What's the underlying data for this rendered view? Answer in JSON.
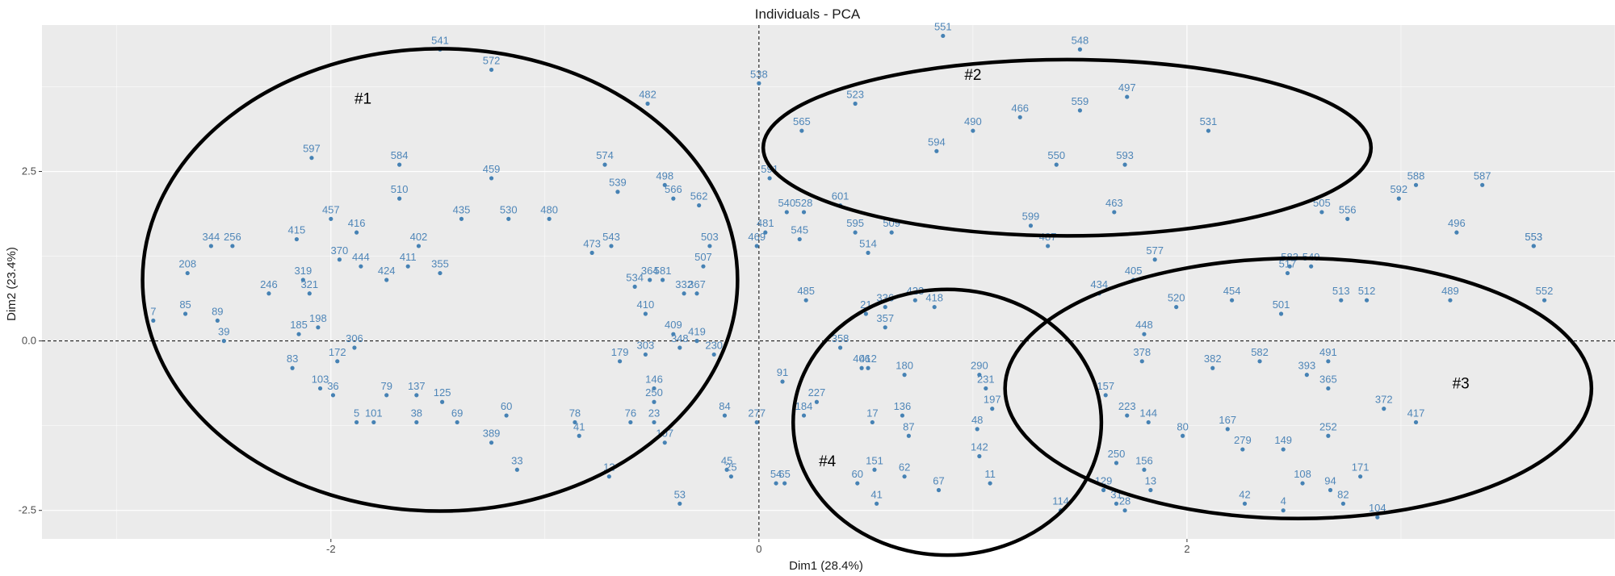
{
  "chart_data": {
    "type": "scatter",
    "title": "Individuals - PCA",
    "xlabel": "Dim1 (28.4%)",
    "ylabel": "Dim2 (23.4%)",
    "xlim": [
      -3.35,
      4.0
    ],
    "ylim": [
      -2.92,
      4.66
    ],
    "x_ticks": [
      -2,
      0,
      2
    ],
    "x_tick_labels": [
      "-2",
      "0",
      "2"
    ],
    "y_ticks": [
      -2.5,
      0.0,
      2.5
    ],
    "y_tick_labels": [
      "-2.5",
      "0.0",
      "2.5"
    ],
    "grid": true,
    "reference_lines": {
      "x": 0,
      "y": 0,
      "style": "dashed"
    },
    "point_color": "#4682b4",
    "points": [
      {
        "label": "541",
        "x": -1.49,
        "y": 4.3
      },
      {
        "label": "572",
        "x": -1.25,
        "y": 4.0
      },
      {
        "label": "538",
        "x": 0.0,
        "y": 3.8
      },
      {
        "label": "551",
        "x": 0.86,
        "y": 4.5
      },
      {
        "label": "548",
        "x": 1.5,
        "y": 4.3
      },
      {
        "label": "523",
        "x": 0.45,
        "y": 3.5
      },
      {
        "label": "497",
        "x": 1.72,
        "y": 3.6
      },
      {
        "label": "466",
        "x": 1.22,
        "y": 3.3
      },
      {
        "label": "559",
        "x": 1.5,
        "y": 3.4
      },
      {
        "label": "490",
        "x": 1.0,
        "y": 3.1
      },
      {
        "label": "565",
        "x": 0.2,
        "y": 3.1
      },
      {
        "label": "482",
        "x": -0.52,
        "y": 3.5
      },
      {
        "label": "531",
        "x": 2.1,
        "y": 3.1
      },
      {
        "label": "597",
        "x": -2.09,
        "y": 2.7
      },
      {
        "label": "584",
        "x": -1.68,
        "y": 2.6
      },
      {
        "label": "459",
        "x": -1.25,
        "y": 2.4
      },
      {
        "label": "574",
        "x": -0.72,
        "y": 2.6
      },
      {
        "label": "498",
        "x": -0.44,
        "y": 2.3
      },
      {
        "label": "539",
        "x": -0.66,
        "y": 2.2
      },
      {
        "label": "566",
        "x": -0.4,
        "y": 2.1
      },
      {
        "label": "562",
        "x": -0.28,
        "y": 2.0
      },
      {
        "label": "510",
        "x": -1.68,
        "y": 2.1
      },
      {
        "label": "594",
        "x": 0.83,
        "y": 2.8
      },
      {
        "label": "591",
        "x": 0.05,
        "y": 2.4
      },
      {
        "label": "593",
        "x": 1.71,
        "y": 2.6
      },
      {
        "label": "550",
        "x": 1.39,
        "y": 2.6
      },
      {
        "label": "588",
        "x": 3.07,
        "y": 2.3
      },
      {
        "label": "587",
        "x": 3.38,
        "y": 2.3
      },
      {
        "label": "592",
        "x": 2.99,
        "y": 2.1
      },
      {
        "label": "463",
        "x": 1.66,
        "y": 1.9
      },
      {
        "label": "505",
        "x": 2.63,
        "y": 1.9
      },
      {
        "label": "556",
        "x": 2.75,
        "y": 1.8
      },
      {
        "label": "496",
        "x": 3.26,
        "y": 1.6
      },
      {
        "label": "553",
        "x": 3.62,
        "y": 1.4
      },
      {
        "label": "457",
        "x": -2.0,
        "y": 1.8
      },
      {
        "label": "416",
        "x": -1.88,
        "y": 1.6
      },
      {
        "label": "415",
        "x": -2.16,
        "y": 1.5
      },
      {
        "label": "344",
        "x": -2.56,
        "y": 1.4
      },
      {
        "label": "256",
        "x": -2.46,
        "y": 1.4
      },
      {
        "label": "208",
        "x": -2.67,
        "y": 1.0
      },
      {
        "label": "7",
        "x": -2.83,
        "y": 0.3
      },
      {
        "label": "85",
        "x": -2.68,
        "y": 0.4
      },
      {
        "label": "89",
        "x": -2.53,
        "y": 0.3
      },
      {
        "label": "39",
        "x": -2.5,
        "y": 0.0
      },
      {
        "label": "246",
        "x": -2.29,
        "y": 0.7
      },
      {
        "label": "402",
        "x": -1.59,
        "y": 1.4
      },
      {
        "label": "435",
        "x": -1.39,
        "y": 1.8
      },
      {
        "label": "530",
        "x": -1.17,
        "y": 1.8
      },
      {
        "label": "480",
        "x": -0.98,
        "y": 1.8
      },
      {
        "label": "503",
        "x": -0.23,
        "y": 1.4
      },
      {
        "label": "507",
        "x": -0.26,
        "y": 1.1
      },
      {
        "label": "543",
        "x": -0.69,
        "y": 1.4
      },
      {
        "label": "473",
        "x": -0.78,
        "y": 1.3
      },
      {
        "label": "553b",
        "x": 3.62,
        "y": 1.4
      },
      {
        "label": "601",
        "x": 0.38,
        "y": 2.0
      },
      {
        "label": "540",
        "x": 0.13,
        "y": 1.9
      },
      {
        "label": "528",
        "x": 0.21,
        "y": 1.9
      },
      {
        "label": "595",
        "x": 0.45,
        "y": 1.6
      },
      {
        "label": "545",
        "x": 0.19,
        "y": 1.5
      },
      {
        "label": "509",
        "x": 0.62,
        "y": 1.6
      },
      {
        "label": "481",
        "x": 0.03,
        "y": 1.6
      },
      {
        "label": "469",
        "x": -0.01,
        "y": 1.4
      },
      {
        "label": "514",
        "x": 0.51,
        "y": 1.3
      },
      {
        "label": "599",
        "x": 1.27,
        "y": 1.7
      },
      {
        "label": "487",
        "x": 1.35,
        "y": 1.4
      },
      {
        "label": "577",
        "x": 1.85,
        "y": 1.2
      },
      {
        "label": "583",
        "x": 2.48,
        "y": 1.1
      },
      {
        "label": "549",
        "x": 2.58,
        "y": 1.1
      },
      {
        "label": "517",
        "x": 2.47,
        "y": 1.0
      },
      {
        "label": "489",
        "x": 3.23,
        "y": 0.6
      },
      {
        "label": "552",
        "x": 3.67,
        "y": 0.6
      },
      {
        "label": "513",
        "x": 2.72,
        "y": 0.6
      },
      {
        "label": "512",
        "x": 2.84,
        "y": 0.6
      },
      {
        "label": "454",
        "x": 2.21,
        "y": 0.6
      },
      {
        "label": "501",
        "x": 2.44,
        "y": 0.4
      },
      {
        "label": "520",
        "x": 1.95,
        "y": 0.5
      },
      {
        "label": "405",
        "x": 1.75,
        "y": 0.9
      },
      {
        "label": "434",
        "x": 1.59,
        "y": 0.7
      },
      {
        "label": "448",
        "x": 1.8,
        "y": 0.1
      },
      {
        "label": "423",
        "x": 0.73,
        "y": 0.6
      },
      {
        "label": "418",
        "x": 0.82,
        "y": 0.5
      },
      {
        "label": "21",
        "x": 0.5,
        "y": 0.4
      },
      {
        "label": "336",
        "x": 0.59,
        "y": 0.5
      },
      {
        "label": "357",
        "x": 0.59,
        "y": 0.2
      },
      {
        "label": "358",
        "x": 0.38,
        "y": -0.1
      },
      {
        "label": "406",
        "x": 0.48,
        "y": -0.4
      },
      {
        "label": "412",
        "x": 0.51,
        "y": -0.4
      },
      {
        "label": "180",
        "x": 0.68,
        "y": -0.5
      },
      {
        "label": "227",
        "x": 0.27,
        "y": -0.9
      },
      {
        "label": "184",
        "x": 0.21,
        "y": -1.1
      },
      {
        "label": "17",
        "x": 0.53,
        "y": -1.2
      },
      {
        "label": "136",
        "x": 0.67,
        "y": -1.1
      },
      {
        "label": "87",
        "x": 0.7,
        "y": -1.4
      },
      {
        "label": "62",
        "x": 0.68,
        "y": -2.0
      },
      {
        "label": "67",
        "x": 0.84,
        "y": -2.2
      },
      {
        "label": "41",
        "x": 0.55,
        "y": -2.4
      },
      {
        "label": "151",
        "x": 0.54,
        "y": -1.9
      },
      {
        "label": "60",
        "x": 0.46,
        "y": -2.1
      },
      {
        "label": "114",
        "x": 1.41,
        "y": -2.5
      },
      {
        "label": "31",
        "x": 1.67,
        "y": -2.4
      },
      {
        "label": "28",
        "x": 1.71,
        "y": -2.5
      },
      {
        "label": "13",
        "x": 1.83,
        "y": -2.2
      },
      {
        "label": "156",
        "x": 1.8,
        "y": -1.9
      },
      {
        "label": "250",
        "x": 1.67,
        "y": -1.8
      },
      {
        "label": "129",
        "x": 1.61,
        "y": -2.2
      },
      {
        "label": "11",
        "x": 1.08,
        "y": -2.1
      },
      {
        "label": "142",
        "x": 1.03,
        "y": -1.7
      },
      {
        "label": "48",
        "x": 1.02,
        "y": -1.3
      },
      {
        "label": "197",
        "x": 1.09,
        "y": -1.0
      },
      {
        "label": "231",
        "x": 1.06,
        "y": -0.7
      },
      {
        "label": "290",
        "x": 1.03,
        "y": -0.5
      },
      {
        "label": "378",
        "x": 1.79,
        "y": -0.3
      },
      {
        "label": "157",
        "x": 1.62,
        "y": -0.8
      },
      {
        "label": "223",
        "x": 1.72,
        "y": -1.1
      },
      {
        "label": "144",
        "x": 1.82,
        "y": -1.2
      },
      {
        "label": "382",
        "x": 2.12,
        "y": -0.4
      },
      {
        "label": "582",
        "x": 2.34,
        "y": -0.3
      },
      {
        "label": "491",
        "x": 2.66,
        "y": -0.3
      },
      {
        "label": "393",
        "x": 2.56,
        "y": -0.5
      },
      {
        "label": "365",
        "x": 2.66,
        "y": -0.7
      },
      {
        "label": "372",
        "x": 2.92,
        "y": -1.0
      },
      {
        "label": "417",
        "x": 3.07,
        "y": -1.2
      },
      {
        "label": "252",
        "x": 2.66,
        "y": -1.4
      },
      {
        "label": "167",
        "x": 2.19,
        "y": -1.3
      },
      {
        "label": "80",
        "x": 1.98,
        "y": -1.4
      },
      {
        "label": "279",
        "x": 2.26,
        "y": -1.6
      },
      {
        "label": "149",
        "x": 2.45,
        "y": -1.6
      },
      {
        "label": "108",
        "x": 2.54,
        "y": -2.1
      },
      {
        "label": "171",
        "x": 2.81,
        "y": -2.0
      },
      {
        "label": "94",
        "x": 2.67,
        "y": -2.2
      },
      {
        "label": "82",
        "x": 2.73,
        "y": -2.4
      },
      {
        "label": "104",
        "x": 2.89,
        "y": -2.6
      },
      {
        "label": "42",
        "x": 2.27,
        "y": -2.4
      },
      {
        "label": "4",
        "x": 2.45,
        "y": -2.5
      },
      {
        "label": "33",
        "x": -1.13,
        "y": -1.9
      },
      {
        "label": "12",
        "x": -0.7,
        "y": -2.0
      },
      {
        "label": "53",
        "x": -0.37,
        "y": -2.4
      },
      {
        "label": "45",
        "x": -0.15,
        "y": -1.9
      },
      {
        "label": "25",
        "x": -0.13,
        "y": -2.0
      },
      {
        "label": "54",
        "x": 0.08,
        "y": -2.1
      },
      {
        "label": "65",
        "x": 0.12,
        "y": -2.1
      },
      {
        "label": "107",
        "x": -0.44,
        "y": -1.5
      },
      {
        "label": "76",
        "x": -0.6,
        "y": -1.2
      },
      {
        "label": "23",
        "x": -0.49,
        "y": -1.2
      },
      {
        "label": "84",
        "x": -0.16,
        "y": -1.1
      },
      {
        "label": "277",
        "x": -0.01,
        "y": -1.2
      },
      {
        "label": "91",
        "x": 0.11,
        "y": -0.6
      },
      {
        "label": "230",
        "x": -0.21,
        "y": -0.2
      },
      {
        "label": "419",
        "x": -0.29,
        "y": 0.0
      },
      {
        "label": "348",
        "x": -0.37,
        "y": -0.1
      },
      {
        "label": "303",
        "x": -0.53,
        "y": -0.2
      },
      {
        "label": "179",
        "x": -0.65,
        "y": -0.3
      },
      {
        "label": "146",
        "x": -0.49,
        "y": -0.7
      },
      {
        "label": "250b",
        "x": -0.49,
        "y": -0.9
      },
      {
        "label": "409",
        "x": -0.4,
        "y": 0.1
      },
      {
        "label": "410",
        "x": -0.53,
        "y": 0.4
      },
      {
        "label": "364",
        "x": -0.51,
        "y": 0.9
      },
      {
        "label": "581",
        "x": -0.45,
        "y": 0.9
      },
      {
        "label": "534",
        "x": -0.58,
        "y": 0.8
      },
      {
        "label": "332",
        "x": -0.35,
        "y": 0.7
      },
      {
        "label": "367",
        "x": -0.29,
        "y": 0.7
      },
      {
        "label": "424",
        "x": -1.74,
        "y": 0.9
      },
      {
        "label": "444",
        "x": -1.86,
        "y": 1.1
      },
      {
        "label": "370",
        "x": -1.96,
        "y": 1.2
      },
      {
        "label": "411",
        "x": -1.64,
        "y": 1.1
      },
      {
        "label": "355",
        "x": -1.49,
        "y": 1.0
      },
      {
        "label": "321",
        "x": -2.1,
        "y": 0.7
      },
      {
        "label": "319",
        "x": -2.13,
        "y": 0.9
      },
      {
        "label": "198",
        "x": -2.06,
        "y": 0.2
      },
      {
        "label": "185",
        "x": -2.15,
        "y": 0.1
      },
      {
        "label": "306",
        "x": -1.89,
        "y": -0.1
      },
      {
        "label": "172",
        "x": -1.97,
        "y": -0.3
      },
      {
        "label": "83",
        "x": -2.18,
        "y": -0.4
      },
      {
        "label": "103",
        "x": -2.05,
        "y": -0.7
      },
      {
        "label": "36",
        "x": -1.99,
        "y": -0.8
      },
      {
        "label": "79",
        "x": -1.74,
        "y": -0.8
      },
      {
        "label": "137",
        "x": -1.6,
        "y": -0.8
      },
      {
        "label": "125",
        "x": -1.48,
        "y": -0.9
      },
      {
        "label": "69",
        "x": -1.41,
        "y": -1.2
      },
      {
        "label": "38",
        "x": -1.6,
        "y": -1.2
      },
      {
        "label": "101",
        "x": -1.8,
        "y": -1.2
      },
      {
        "label": "5",
        "x": -1.88,
        "y": -1.2
      },
      {
        "label": "389",
        "x": -1.25,
        "y": -1.5
      },
      {
        "label": "41b",
        "x": -0.84,
        "y": -1.4
      },
      {
        "label": "78",
        "x": -0.86,
        "y": -1.2
      },
      {
        "label": "60b",
        "x": -1.18,
        "y": -1.1
      },
      {
        "label": "485",
        "x": 0.22,
        "y": 0.6
      }
    ],
    "ellipses": [
      {
        "label": "#1",
        "cx": -1.49,
        "cy": 0.9,
        "rx": 1.39,
        "ry": 3.41
      },
      {
        "label": "#2",
        "cx": 1.44,
        "cy": 2.85,
        "rx": 1.42,
        "ry": 1.3
      },
      {
        "label": "#3",
        "cx": 2.52,
        "cy": -0.7,
        "rx": 1.37,
        "ry": 1.92
      },
      {
        "label": "#4",
        "cx": 0.88,
        "cy": -1.2,
        "rx": 0.72,
        "ry": 1.96
      }
    ],
    "annotations": [
      "#1",
      "#2",
      "#3",
      "#4"
    ]
  }
}
